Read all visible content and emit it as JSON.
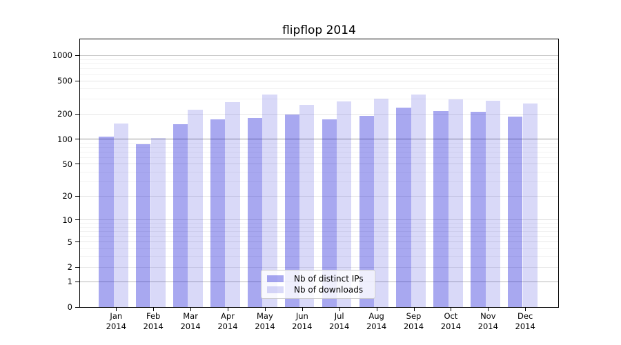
{
  "chart_data": {
    "type": "bar",
    "title": "flipflop 2014",
    "categories": [
      "Jan",
      "Feb",
      "Mar",
      "Apr",
      "May",
      "Jun",
      "Jul",
      "Aug",
      "Sep",
      "Oct",
      "Nov",
      "Dec"
    ],
    "x_tick_year": "2014",
    "series": [
      {
        "name": "Nb of distinct IPs",
        "fill": "rgba(0,0,210,0.34)",
        "rendered_color": "#a9a9f0",
        "values": [
          105,
          86,
          150,
          172,
          177,
          196,
          172,
          189,
          236,
          213,
          210,
          185
        ]
      },
      {
        "name": "Nb of downloads",
        "fill": "rgba(0,0,210,0.15)",
        "rendered_color": "#d8d8f8",
        "values": [
          151,
          102,
          224,
          277,
          336,
          256,
          282,
          302,
          340,
          294,
          284,
          264
        ]
      }
    ],
    "y_ticks": [
      1000,
      500,
      200,
      100,
      50,
      20,
      10,
      5,
      2,
      1,
      0
    ],
    "y_scale": "log10(value+1)",
    "ylim": [
      0,
      1550
    ],
    "xlabel": "",
    "ylabel": "",
    "grid": "horizontal",
    "legend_position": "lower-center",
    "colors": {
      "axis": "#000000",
      "grid_major_100": "#949494",
      "grid_minor": "#f2f2f2"
    }
  }
}
